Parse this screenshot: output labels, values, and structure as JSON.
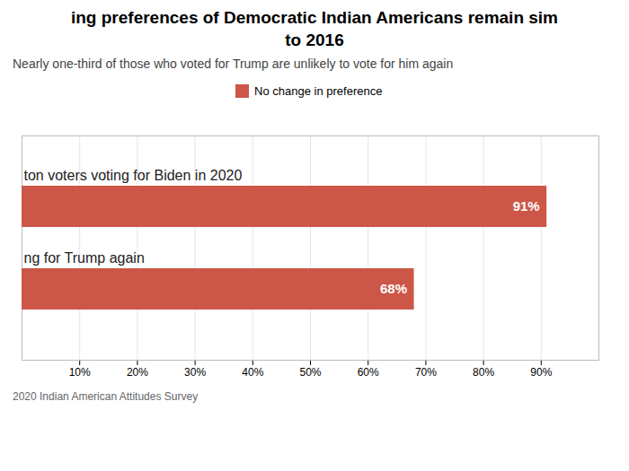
{
  "chart_data": {
    "type": "bar",
    "orientation": "horizontal",
    "title": "ing preferences of Democratic Indian Americans remain sim\nto 2016",
    "subtitle": "Nearly one-third of those who voted for Trump are unlikely to vote for him again",
    "categories": [
      "ton voters voting for Biden in 2020",
      "ng for Trump again"
    ],
    "series": [
      {
        "name": "No change in preference",
        "color": "#cc5748",
        "values": [
          91,
          68
        ]
      }
    ],
    "value_labels": [
      "91%",
      "68%"
    ],
    "data_labels": true,
    "xlim": [
      0,
      100
    ],
    "xticks": [
      {
        "value": 10,
        "label": "10%"
      },
      {
        "value": 20,
        "label": "20%"
      },
      {
        "value": 30,
        "label": "30%"
      },
      {
        "value": 40,
        "label": "40%"
      },
      {
        "value": 50,
        "label": "50%"
      },
      {
        "value": 60,
        "label": "60%"
      },
      {
        "value": 70,
        "label": "70%"
      },
      {
        "value": 80,
        "label": "80%"
      },
      {
        "value": 90,
        "label": "90%"
      }
    ],
    "grid": true,
    "legend": "top",
    "annotations": [
      "2020 Indian American Attitudes Survey"
    ]
  }
}
